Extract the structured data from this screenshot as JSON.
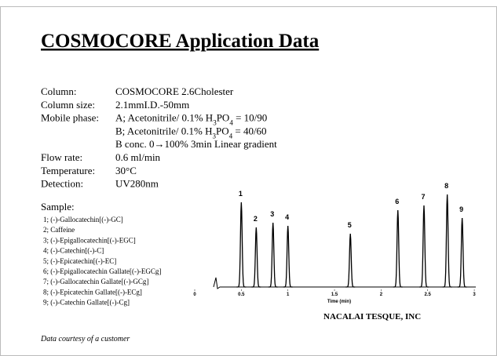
{
  "title": "COSMOCORE Application Data",
  "specs": [
    {
      "label": "Column:",
      "value": [
        {
          "text": "COSMOCORE 2.6Cholester"
        }
      ]
    },
    {
      "label": "Column size:",
      "value": [
        {
          "text": "2.1mmI.D.-50mm"
        }
      ]
    },
    {
      "label": "Mobile phase:",
      "value": [
        {
          "text": "A; Acetonitrile/ 0.1% H"
        },
        {
          "text": "3",
          "sub": true
        },
        {
          "text": "PO"
        },
        {
          "text": "4",
          "sub": true
        },
        {
          "text": " = 10/90"
        }
      ]
    },
    {
      "label": null,
      "value": [
        {
          "text": "B; Acetonitrile/ 0.1% H"
        },
        {
          "text": "3",
          "sub": true
        },
        {
          "text": "PO"
        },
        {
          "text": "4",
          "sub": true
        },
        {
          "text": " = 40/60"
        }
      ]
    },
    {
      "label": null,
      "value": [
        {
          "text": "B conc. 0→100% 3min Linear gradient"
        }
      ]
    },
    {
      "label": "Flow rate:",
      "value": [
        {
          "text": "0.6 ml/min"
        }
      ]
    },
    {
      "label": "Temperature:",
      "value": [
        {
          "text": "30°C"
        }
      ]
    },
    {
      "label": "Detection:",
      "value": [
        {
          "text": "UV280nm"
        }
      ]
    }
  ],
  "sample_heading": "Sample:",
  "samples": [
    "1; (-)-Gallocatechin[(-)-GC]",
    "2; Caffeine",
    "3; (-)-Epigallocatechin[(-)-EGC]",
    "4; (-)-Catechin[(-)-C]",
    "5; (-)-Epicatechin[(-)-EC]",
    "6; (-)-Epigallocatechin Gallate[(-)-EGCg]",
    "7; (-)-Gallocatechin Gallate[(-)-GCg]",
    "8; (-)-Epicatechin Gallate[(-)-ECg]",
    "9; (-)-Catechin Gallate[(-)-Cg]"
  ],
  "chromatogram": {
    "x_label": "Time (min)",
    "xlim": [
      0,
      3.05
    ],
    "xticks": [
      0,
      0.5,
      1,
      1.5,
      2,
      2.5,
      3
    ],
    "peaks": [
      {
        "label": "1",
        "time": 0.5
      },
      {
        "label": "2",
        "time": 0.66
      },
      {
        "label": "3",
        "time": 0.84
      },
      {
        "label": "4",
        "time": 1.0
      },
      {
        "label": "5",
        "time": 1.67
      },
      {
        "label": "6",
        "time": 2.18
      },
      {
        "label": "7",
        "time": 2.46
      },
      {
        "label": "8",
        "time": 2.71
      },
      {
        "label": "9",
        "time": 2.87
      }
    ]
  },
  "company": "NACALAI TESQUE, INC",
  "credit": "Data courtesy of a customer"
}
